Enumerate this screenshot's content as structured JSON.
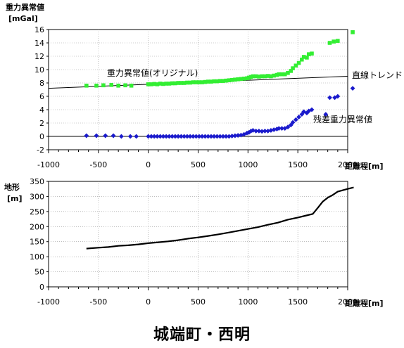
{
  "caption": "城端町・西明",
  "colors": {
    "green": "#33ee33",
    "blue": "#1a1acc",
    "black": "#000000"
  },
  "chart_data": [
    {
      "type": "scatter",
      "ylabel": "重力異常値",
      "yunit": "[mGal]",
      "xlabel": "距離程[m]",
      "xlim": [
        -1000,
        2000
      ],
      "ylim": [
        -2,
        16
      ],
      "xticks": [
        "-1000",
        "-500",
        "0",
        "500",
        "1000",
        "1500",
        "2000"
      ],
      "yticks": [
        "-2",
        "0",
        "2",
        "4",
        "6",
        "8",
        "10",
        "12",
        "14",
        "16"
      ],
      "grid": true,
      "annotations": {
        "original": "重力異常値(オリジナル)",
        "trend": "直線トレンド",
        "residual": "残差重力異常値"
      },
      "trend_line": {
        "x": [
          -1000,
          2000
        ],
        "y": [
          7.2,
          9.0
        ]
      },
      "series": [
        {
          "key": "original",
          "marker": "square",
          "color": "#33ee33",
          "points": [
            [
              -620,
              7.6
            ],
            [
              -520,
              7.6
            ],
            [
              -450,
              7.65
            ],
            [
              -370,
              7.7
            ],
            [
              -300,
              7.6
            ],
            [
              -230,
              7.65
            ],
            [
              -170,
              7.6
            ],
            [
              0,
              7.8
            ],
            [
              30,
              7.8
            ],
            [
              60,
              7.85
            ],
            [
              90,
              7.8
            ],
            [
              120,
              7.9
            ],
            [
              150,
              7.85
            ],
            [
              180,
              7.9
            ],
            [
              210,
              7.9
            ],
            [
              240,
              7.95
            ],
            [
              270,
              7.95
            ],
            [
              300,
              8.0
            ],
            [
              330,
              8.0
            ],
            [
              360,
              8.0
            ],
            [
              390,
              8.05
            ],
            [
              420,
              8.05
            ],
            [
              450,
              8.1
            ],
            [
              480,
              8.1
            ],
            [
              510,
              8.1
            ],
            [
              540,
              8.1
            ],
            [
              570,
              8.15
            ],
            [
              600,
              8.2
            ],
            [
              630,
              8.2
            ],
            [
              660,
              8.25
            ],
            [
              690,
              8.25
            ],
            [
              720,
              8.3
            ],
            [
              750,
              8.3
            ],
            [
              780,
              8.35
            ],
            [
              810,
              8.4
            ],
            [
              840,
              8.45
            ],
            [
              870,
              8.5
            ],
            [
              900,
              8.55
            ],
            [
              930,
              8.6
            ],
            [
              960,
              8.65
            ],
            [
              990,
              8.7
            ],
            [
              1010,
              8.8
            ],
            [
              1030,
              8.9
            ],
            [
              1050,
              9.0
            ],
            [
              1080,
              9.0
            ],
            [
              1110,
              8.95
            ],
            [
              1140,
              9.0
            ],
            [
              1170,
              9.0
            ],
            [
              1200,
              9.05
            ],
            [
              1230,
              9.0
            ],
            [
              1260,
              9.1
            ],
            [
              1290,
              9.2
            ],
            [
              1310,
              9.3
            ],
            [
              1340,
              9.3
            ],
            [
              1370,
              9.3
            ],
            [
              1400,
              9.5
            ],
            [
              1430,
              9.8
            ],
            [
              1450,
              10.2
            ],
            [
              1480,
              10.6
            ],
            [
              1510,
              11.0
            ],
            [
              1540,
              11.5
            ],
            [
              1560,
              11.9
            ],
            [
              1590,
              11.8
            ],
            [
              1610,
              12.3
            ],
            [
              1640,
              12.4
            ],
            [
              1820,
              14.0
            ],
            [
              1860,
              14.2
            ],
            [
              1900,
              14.3
            ],
            [
              2050,
              15.6
            ]
          ]
        },
        {
          "key": "residual",
          "marker": "diamond",
          "color": "#1a1acc",
          "points": [
            [
              -620,
              0.1
            ],
            [
              -520,
              0.1
            ],
            [
              -430,
              0.1
            ],
            [
              -350,
              0.1
            ],
            [
              -270,
              0.0
            ],
            [
              -180,
              0.0
            ],
            [
              -120,
              0.0
            ],
            [
              0,
              0.0
            ],
            [
              30,
              0.0
            ],
            [
              60,
              0.0
            ],
            [
              90,
              0.0
            ],
            [
              120,
              0.0
            ],
            [
              150,
              0.0
            ],
            [
              180,
              0.0
            ],
            [
              210,
              0.0
            ],
            [
              240,
              0.0
            ],
            [
              270,
              0.0
            ],
            [
              300,
              0.0
            ],
            [
              330,
              0.0
            ],
            [
              360,
              0.0
            ],
            [
              390,
              0.0
            ],
            [
              420,
              0.0
            ],
            [
              450,
              0.0
            ],
            [
              480,
              0.0
            ],
            [
              510,
              0.0
            ],
            [
              540,
              0.0
            ],
            [
              570,
              0.0
            ],
            [
              600,
              0.0
            ],
            [
              630,
              0.0
            ],
            [
              660,
              0.0
            ],
            [
              690,
              0.0
            ],
            [
              720,
              0.0
            ],
            [
              750,
              0.0
            ],
            [
              780,
              0.0
            ],
            [
              810,
              0.0
            ],
            [
              840,
              0.05
            ],
            [
              870,
              0.1
            ],
            [
              900,
              0.15
            ],
            [
              930,
              0.2
            ],
            [
              960,
              0.3
            ],
            [
              990,
              0.5
            ],
            [
              1010,
              0.6
            ],
            [
              1030,
              0.8
            ],
            [
              1050,
              0.9
            ],
            [
              1080,
              0.8
            ],
            [
              1110,
              0.8
            ],
            [
              1140,
              0.75
            ],
            [
              1170,
              0.8
            ],
            [
              1200,
              0.8
            ],
            [
              1230,
              0.9
            ],
            [
              1260,
              1.0
            ],
            [
              1290,
              1.1
            ],
            [
              1310,
              1.2
            ],
            [
              1340,
              1.2
            ],
            [
              1370,
              1.2
            ],
            [
              1400,
              1.4
            ],
            [
              1430,
              1.7
            ],
            [
              1450,
              2.1
            ],
            [
              1480,
              2.5
            ],
            [
              1510,
              2.9
            ],
            [
              1540,
              3.3
            ],
            [
              1560,
              3.7
            ],
            [
              1590,
              3.5
            ],
            [
              1610,
              3.8
            ],
            [
              1640,
              4.0
            ],
            [
              1780,
              3.3
            ],
            [
              1820,
              5.8
            ],
            [
              1870,
              5.8
            ],
            [
              1900,
              6.0
            ],
            [
              2050,
              7.2
            ]
          ]
        }
      ]
    },
    {
      "type": "line",
      "ylabel": "地形",
      "yunit": "[m]",
      "xlabel": "距離程[m]",
      "xlim": [
        -1000,
        2000
      ],
      "ylim": [
        0,
        350
      ],
      "xticks": [
        "-1000",
        "-500",
        "0",
        "500",
        "1000",
        "1500",
        "2000"
      ],
      "yticks": [
        "0",
        "50",
        "100",
        "150",
        "200",
        "250",
        "300",
        "350"
      ],
      "grid": true,
      "series": [
        {
          "key": "terrain",
          "color": "#000000",
          "points": [
            [
              -620,
              127
            ],
            [
              -500,
              130
            ],
            [
              -400,
              132
            ],
            [
              -300,
              136
            ],
            [
              -200,
              138
            ],
            [
              -100,
              141
            ],
            [
              0,
              145
            ],
            [
              100,
              148
            ],
            [
              200,
              151
            ],
            [
              300,
              155
            ],
            [
              400,
              160
            ],
            [
              500,
              164
            ],
            [
              600,
              169
            ],
            [
              700,
              174
            ],
            [
              800,
              180
            ],
            [
              900,
              186
            ],
            [
              1000,
              192
            ],
            [
              1100,
              198
            ],
            [
              1200,
              206
            ],
            [
              1300,
              213
            ],
            [
              1400,
              223
            ],
            [
              1500,
              230
            ],
            [
              1600,
              238
            ],
            [
              1650,
              242
            ],
            [
              1700,
              262
            ],
            [
              1750,
              283
            ],
            [
              1800,
              296
            ],
            [
              1850,
              305
            ],
            [
              1900,
              316
            ],
            [
              2000,
              325
            ],
            [
              2060,
              330
            ]
          ]
        }
      ]
    }
  ]
}
